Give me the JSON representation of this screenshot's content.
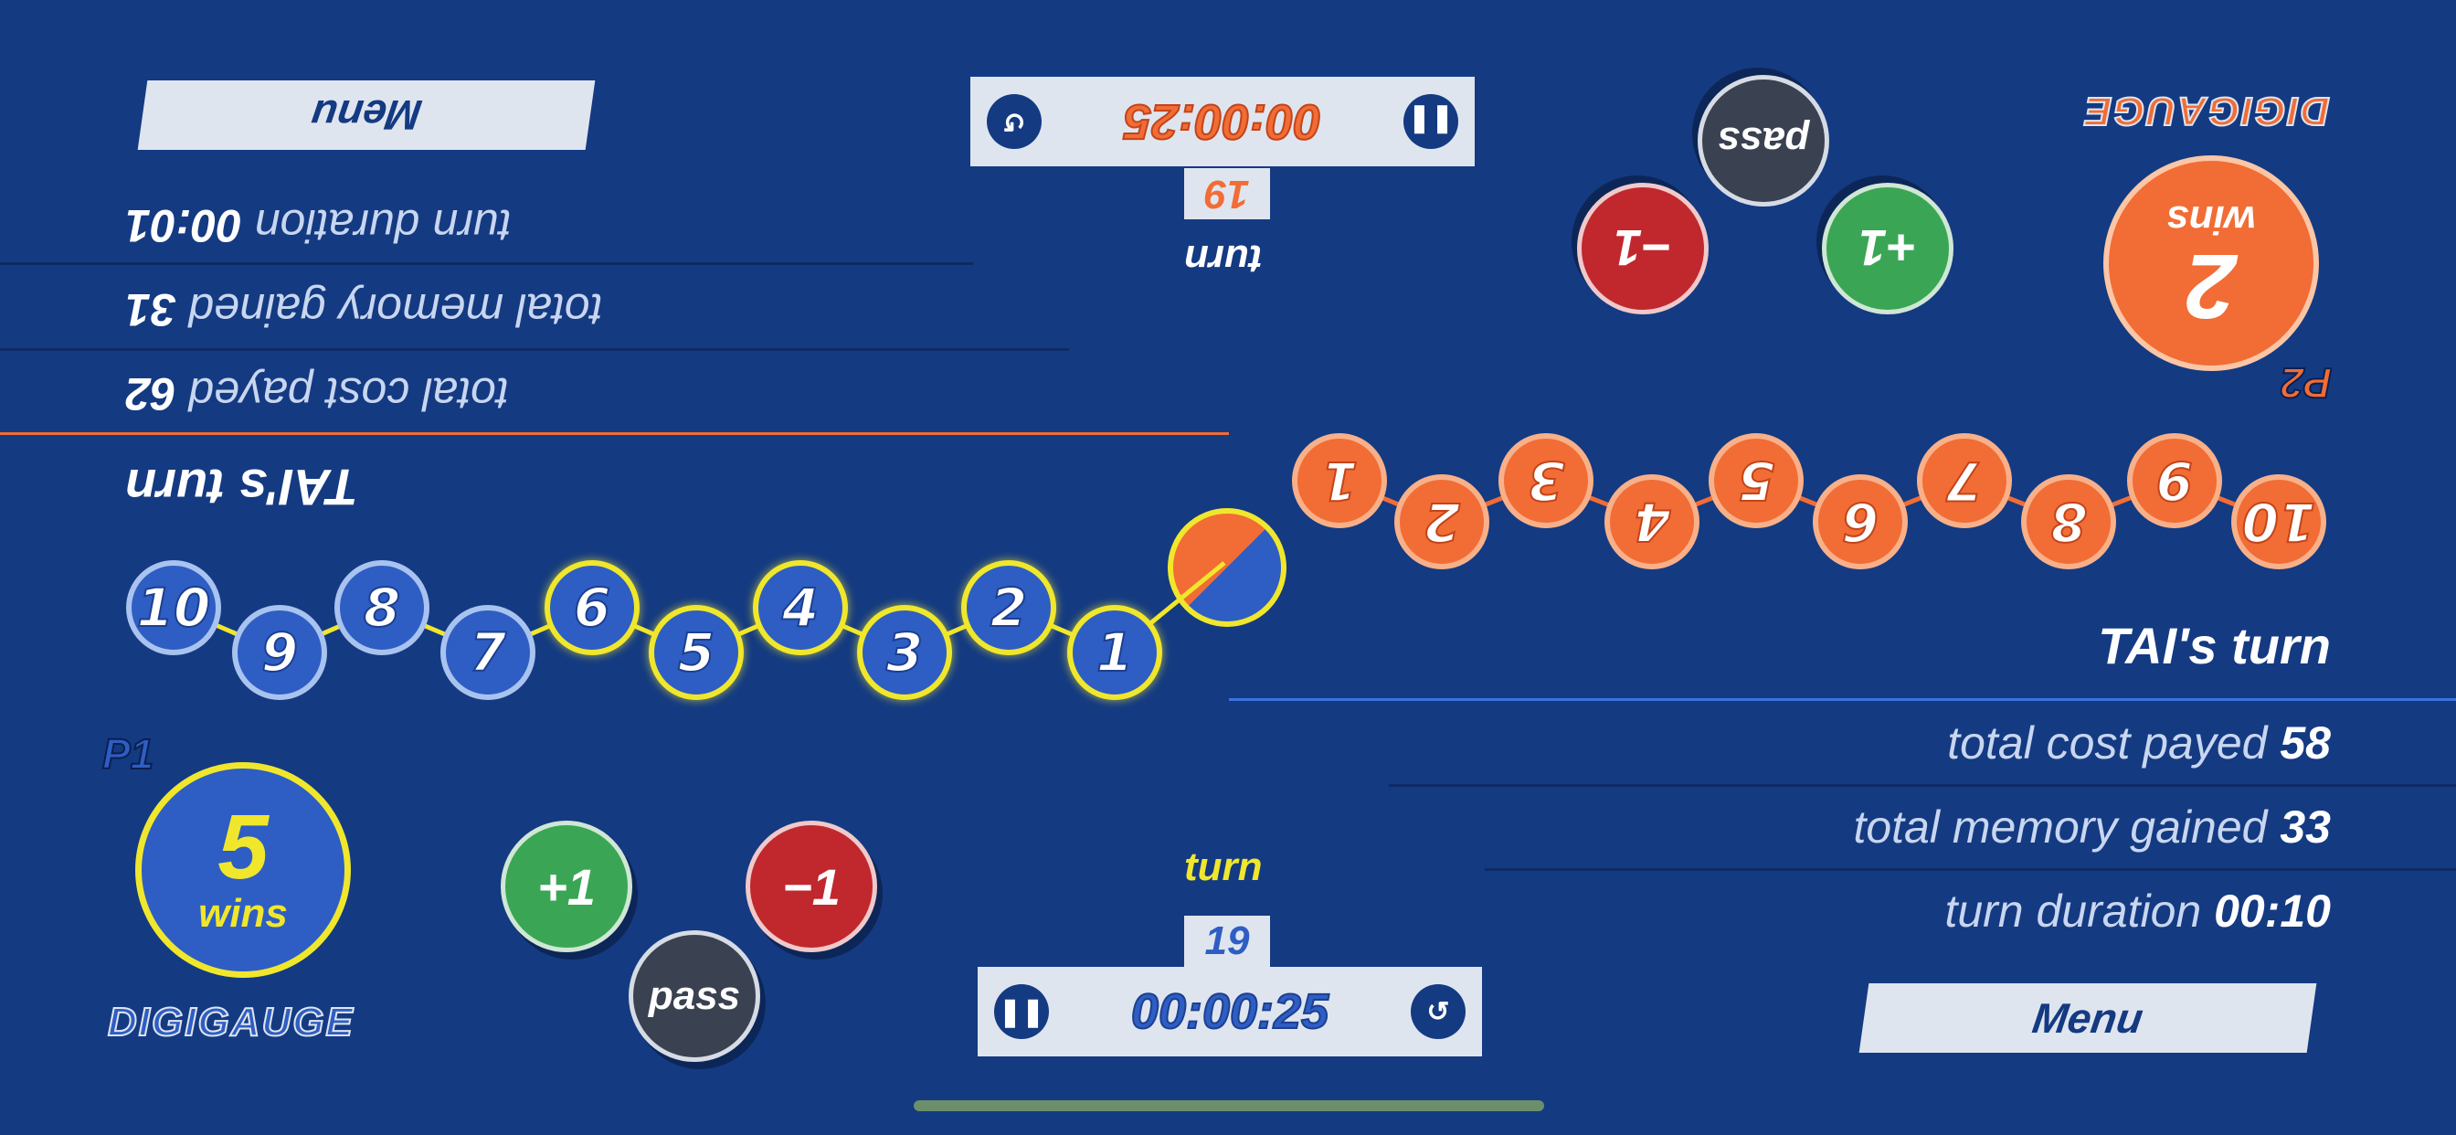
{
  "colors": {
    "background": "#143a82",
    "p1_accent": "#f0e72c",
    "p1_chip": "#2e5ec3",
    "p2_chip": "#f26c35",
    "plus_button": "#3aa655",
    "minus_button": "#c0282e",
    "pass_button": "#3a4150"
  },
  "p1": {
    "label": "P1",
    "wins_count": "5",
    "wins_label": "wins",
    "logo_text": "DIGIGAUGE",
    "turn_label": "turn",
    "turn_number": "19",
    "timer": "00:00:25",
    "menu_label": "Menu",
    "plus_label": "+1",
    "minus_label": "−1",
    "pass_label": "pass",
    "chips": [
      "10",
      "9",
      "8",
      "7",
      "6",
      "5",
      "4",
      "3",
      "2",
      "1"
    ],
    "active_chips": [
      "6",
      "5",
      "4",
      "3",
      "2",
      "1"
    ]
  },
  "p2": {
    "label": "P2",
    "wins_count": "2",
    "wins_label": "wins",
    "logo_text": "DIGIGAUGE",
    "turn_label": "turn",
    "turn_number": "19",
    "timer": "00:00:25",
    "menu_label": "Menu",
    "plus_label": "+1",
    "minus_label": "−1",
    "pass_label": "pass",
    "chips": [
      "1",
      "2",
      "3",
      "4",
      "5",
      "6",
      "7",
      "8",
      "9",
      "10"
    ],
    "heading": "TAI's turn",
    "stats": {
      "cost_label": "total cost payed",
      "cost_value": "62",
      "memory_label": "total memory gained",
      "memory_value": "31",
      "duration_label": "turn duration",
      "duration_value": "00:01"
    }
  },
  "bottom_stats": {
    "heading": "TAI's turn",
    "cost_label": "total cost payed",
    "cost_value": "58",
    "memory_label": "total memory gained",
    "memory_value": "33",
    "duration_label": "turn duration",
    "duration_value": "00:10"
  }
}
